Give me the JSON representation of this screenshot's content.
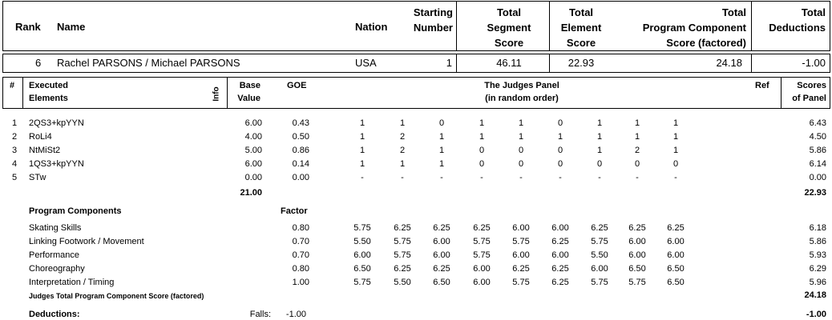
{
  "header": {
    "rank": "Rank",
    "name": "Name",
    "nation": "Nation",
    "starting_number": [
      "Starting",
      "Number"
    ],
    "total_segment_score": [
      "Total",
      "Segment",
      "Score"
    ],
    "total_element_score": [
      "Total",
      "Element",
      "Score"
    ],
    "total_pcs": [
      "Total",
      "Program Component",
      "Score (factored)"
    ],
    "total_deductions": [
      "Total",
      "Deductions"
    ]
  },
  "skater": {
    "rank": "6",
    "name": "Rachel PARSONS / Michael PARSONS",
    "nation": "USA",
    "starting_number": "1",
    "segment_score": "46.11",
    "element_score": "22.93",
    "pcs": "24.18",
    "deductions": "-1.00"
  },
  "elements_header": {
    "num": "#",
    "executed": [
      "Executed",
      "Elements"
    ],
    "info": "Info",
    "base_value": [
      "Base",
      "Value"
    ],
    "goe": "GOE",
    "judges_panel": [
      "The Judges Panel",
      "(in random order)"
    ],
    "ref": "Ref",
    "scores_of_panel": [
      "Scores",
      "of Panel"
    ]
  },
  "elements": [
    {
      "num": "1",
      "name": "2QS3+kpYYN",
      "base": "6.00",
      "goe": "0.43",
      "judges": [
        "1",
        "1",
        "0",
        "1",
        "1",
        "0",
        "1",
        "1",
        "1"
      ],
      "score": "6.43"
    },
    {
      "num": "2",
      "name": "RoLi4",
      "base": "4.00",
      "goe": "0.50",
      "judges": [
        "1",
        "2",
        "1",
        "1",
        "1",
        "1",
        "1",
        "1",
        "1"
      ],
      "score": "4.50"
    },
    {
      "num": "3",
      "name": "NtMiSt2",
      "base": "5.00",
      "goe": "0.86",
      "judges": [
        "1",
        "2",
        "1",
        "0",
        "0",
        "0",
        "1",
        "2",
        "1"
      ],
      "score": "5.86"
    },
    {
      "num": "4",
      "name": "1QS3+kpYYN",
      "base": "6.00",
      "goe": "0.14",
      "judges": [
        "1",
        "1",
        "1",
        "0",
        "0",
        "0",
        "0",
        "0",
        "0"
      ],
      "score": "6.14"
    },
    {
      "num": "5",
      "name": "STw",
      "base": "0.00",
      "goe": "0.00",
      "judges": [
        "-",
        "-",
        "-",
        "-",
        "-",
        "-",
        "-",
        "-",
        "-"
      ],
      "score": "0.00"
    }
  ],
  "elements_total": {
    "base": "21.00",
    "score": "22.93"
  },
  "program_components": {
    "title": "Program Components",
    "factor_label": "Factor",
    "rows": [
      {
        "name": "Skating Skills",
        "factor": "0.80",
        "judges": [
          "5.75",
          "6.25",
          "6.25",
          "6.25",
          "6.00",
          "6.00",
          "6.25",
          "6.25",
          "6.25"
        ],
        "score": "6.18"
      },
      {
        "name": "Linking Footwork / Movement",
        "factor": "0.70",
        "judges": [
          "5.50",
          "5.75",
          "6.00",
          "5.75",
          "5.75",
          "6.25",
          "5.75",
          "6.00",
          "6.00"
        ],
        "score": "5.86"
      },
      {
        "name": "Performance",
        "factor": "0.70",
        "judges": [
          "6.00",
          "5.75",
          "6.00",
          "5.75",
          "6.00",
          "6.00",
          "5.50",
          "6.00",
          "6.00"
        ],
        "score": "5.93"
      },
      {
        "name": "Choreography",
        "factor": "0.80",
        "judges": [
          "6.50",
          "6.25",
          "6.25",
          "6.00",
          "6.25",
          "6.25",
          "6.00",
          "6.50",
          "6.50"
        ],
        "score": "6.29"
      },
      {
        "name": "Interpretation / Timing",
        "factor": "1.00",
        "judges": [
          "5.75",
          "5.50",
          "6.50",
          "6.00",
          "5.75",
          "6.25",
          "5.75",
          "5.75",
          "6.50"
        ],
        "score": "5.96"
      }
    ],
    "total_label": "Judges Total Program Component Score (factored)",
    "total": "24.18"
  },
  "deductions": {
    "label": "Deductions:",
    "falls_label": "Falls:",
    "falls_value": "-1.00",
    "total": "-1.00"
  }
}
